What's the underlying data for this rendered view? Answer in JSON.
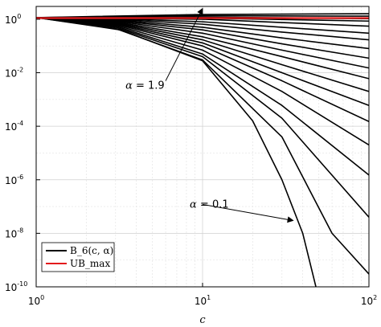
{
  "chart_data": {
    "type": "line",
    "xlabel": "c",
    "ylabel": "",
    "title": "",
    "xscale": "log",
    "yscale": "log",
    "xlim": [
      1,
      100
    ],
    "ylim": [
      1e-10,
      3
    ],
    "grid": true,
    "legend": {
      "placement": "bottom-left",
      "entries": [
        {
          "label": "B_6(c, α)",
          "color": "#000000"
        },
        {
          "label": "UB_max",
          "color": "#e31a1c"
        }
      ]
    },
    "xticks": [
      {
        "value": 1,
        "base": "10",
        "exp": "0"
      },
      {
        "value": 10,
        "base": "10",
        "exp": "1"
      },
      {
        "value": 100,
        "base": "10",
        "exp": "2"
      }
    ],
    "yticks": [
      {
        "value": 1,
        "base": "10",
        "exp": "0"
      },
      {
        "value": 0.01,
        "base": "10",
        "exp": "-2"
      },
      {
        "value": 0.0001,
        "base": "10",
        "exp": "-4"
      },
      {
        "value": 1e-06,
        "base": "10",
        "exp": "-6"
      },
      {
        "value": 1e-08,
        "base": "10",
        "exp": "-8"
      },
      {
        "value": 1e-10,
        "base": "10",
        "exp": "-10"
      }
    ],
    "series": [
      {
        "alpha": 0.1,
        "color": "#000000",
        "points": [
          [
            1,
            1.15
          ],
          [
            3.2,
            0.4
          ],
          [
            10,
            0.028
          ],
          [
            20,
            0.00016
          ],
          [
            30,
            1e-06
          ],
          [
            40,
            1e-08
          ],
          [
            48,
            1e-10
          ]
        ]
      },
      {
        "alpha": 0.2,
        "color": "#000000",
        "points": [
          [
            1,
            1.15
          ],
          [
            3,
            0.45
          ],
          [
            10,
            0.03
          ],
          [
            30,
            4e-05
          ],
          [
            60,
            1e-08
          ],
          [
            100,
            3e-10
          ]
        ]
      },
      {
        "alpha": 0.3,
        "color": "#000000",
        "points": [
          [
            1,
            1.15
          ],
          [
            3,
            0.5
          ],
          [
            10,
            0.04
          ],
          [
            30,
            0.0002
          ],
          [
            100,
            4e-08
          ]
        ]
      },
      {
        "alpha": 0.4,
        "color": "#000000",
        "points": [
          [
            1,
            1.15
          ],
          [
            3,
            0.55
          ],
          [
            10,
            0.05
          ],
          [
            30,
            0.0006
          ],
          [
            100,
            1.5e-06
          ]
        ]
      },
      {
        "alpha": 0.5,
        "color": "#000000",
        "points": [
          [
            1,
            1.15
          ],
          [
            3,
            0.6
          ],
          [
            10,
            0.07
          ],
          [
            30,
            0.002
          ],
          [
            100,
            2e-05
          ]
        ]
      },
      {
        "alpha": 0.6,
        "color": "#000000",
        "points": [
          [
            1,
            1.15
          ],
          [
            3,
            0.65
          ],
          [
            10,
            0.1
          ],
          [
            30,
            0.005
          ],
          [
            100,
            0.00015
          ]
        ]
      },
      {
        "alpha": 0.7,
        "color": "#000000",
        "points": [
          [
            1,
            1.15
          ],
          [
            3,
            0.7
          ],
          [
            10,
            0.13
          ],
          [
            30,
            0.01
          ],
          [
            100,
            0.0006
          ]
        ]
      },
      {
        "alpha": 0.8,
        "color": "#000000",
        "points": [
          [
            1,
            1.15
          ],
          [
            3,
            0.75
          ],
          [
            10,
            0.17
          ],
          [
            30,
            0.02
          ],
          [
            100,
            0.002
          ]
        ]
      },
      {
        "alpha": 0.9,
        "color": "#000000",
        "points": [
          [
            1,
            1.15
          ],
          [
            3,
            0.8
          ],
          [
            10,
            0.22
          ],
          [
            30,
            0.04
          ],
          [
            100,
            0.006
          ]
        ]
      },
      {
        "alpha": 1.0,
        "color": "#000000",
        "points": [
          [
            1,
            1.15
          ],
          [
            3,
            0.85
          ],
          [
            10,
            0.3
          ],
          [
            30,
            0.07
          ],
          [
            100,
            0.015
          ]
        ]
      },
      {
        "alpha": 1.1,
        "color": "#000000",
        "points": [
          [
            1,
            1.15
          ],
          [
            3,
            0.9
          ],
          [
            10,
            0.4
          ],
          [
            30,
            0.12
          ],
          [
            100,
            0.035
          ]
        ]
      },
      {
        "alpha": 1.2,
        "color": "#000000",
        "points": [
          [
            1,
            1.15
          ],
          [
            3,
            0.95
          ],
          [
            10,
            0.5
          ],
          [
            30,
            0.2
          ],
          [
            100,
            0.08
          ]
        ]
      },
      {
        "alpha": 1.3,
        "color": "#000000",
        "points": [
          [
            1,
            1.15
          ],
          [
            3,
            1.0
          ],
          [
            10,
            0.65
          ],
          [
            30,
            0.33
          ],
          [
            100,
            0.17
          ]
        ]
      },
      {
        "alpha": 1.4,
        "color": "#000000",
        "points": [
          [
            1,
            1.15
          ],
          [
            3,
            1.05
          ],
          [
            10,
            0.8
          ],
          [
            30,
            0.5
          ],
          [
            100,
            0.3
          ]
        ]
      },
      {
        "alpha": 1.5,
        "color": "#000000",
        "points": [
          [
            1,
            1.15
          ],
          [
            10,
            1.0
          ],
          [
            30,
            0.75
          ],
          [
            100,
            0.55
          ]
        ]
      },
      {
        "alpha": 1.6,
        "color": "#000000",
        "points": [
          [
            1,
            1.15
          ],
          [
            10,
            1.1
          ],
          [
            100,
            0.85
          ]
        ]
      },
      {
        "alpha": 1.7,
        "color": "#000000",
        "points": [
          [
            1,
            1.15
          ],
          [
            10,
            1.2
          ],
          [
            100,
            1.05
          ]
        ]
      },
      {
        "alpha": 1.8,
        "color": "#000000",
        "points": [
          [
            1,
            1.15
          ],
          [
            10,
            1.35
          ],
          [
            100,
            1.3
          ]
        ]
      },
      {
        "alpha": 1.9,
        "color": "#000000",
        "points": [
          [
            1,
            1.15
          ],
          [
            10,
            1.5
          ],
          [
            100,
            1.6
          ]
        ]
      },
      {
        "alpha": null,
        "color": "#e31a1c",
        "points": [
          [
            1,
            1.1
          ],
          [
            100,
            1.1
          ]
        ]
      }
    ],
    "annotations": [
      {
        "prefix": "α",
        "value_text": " = 1.9",
        "from": [
          6.0,
          0.005
        ],
        "to": [
          10.0,
          2.5
        ]
      },
      {
        "prefix": "α",
        "value_text": " = 0.1",
        "from": [
          10.0,
          1.2e-07
        ],
        "to": [
          35.0,
          3e-08
        ]
      }
    ]
  }
}
